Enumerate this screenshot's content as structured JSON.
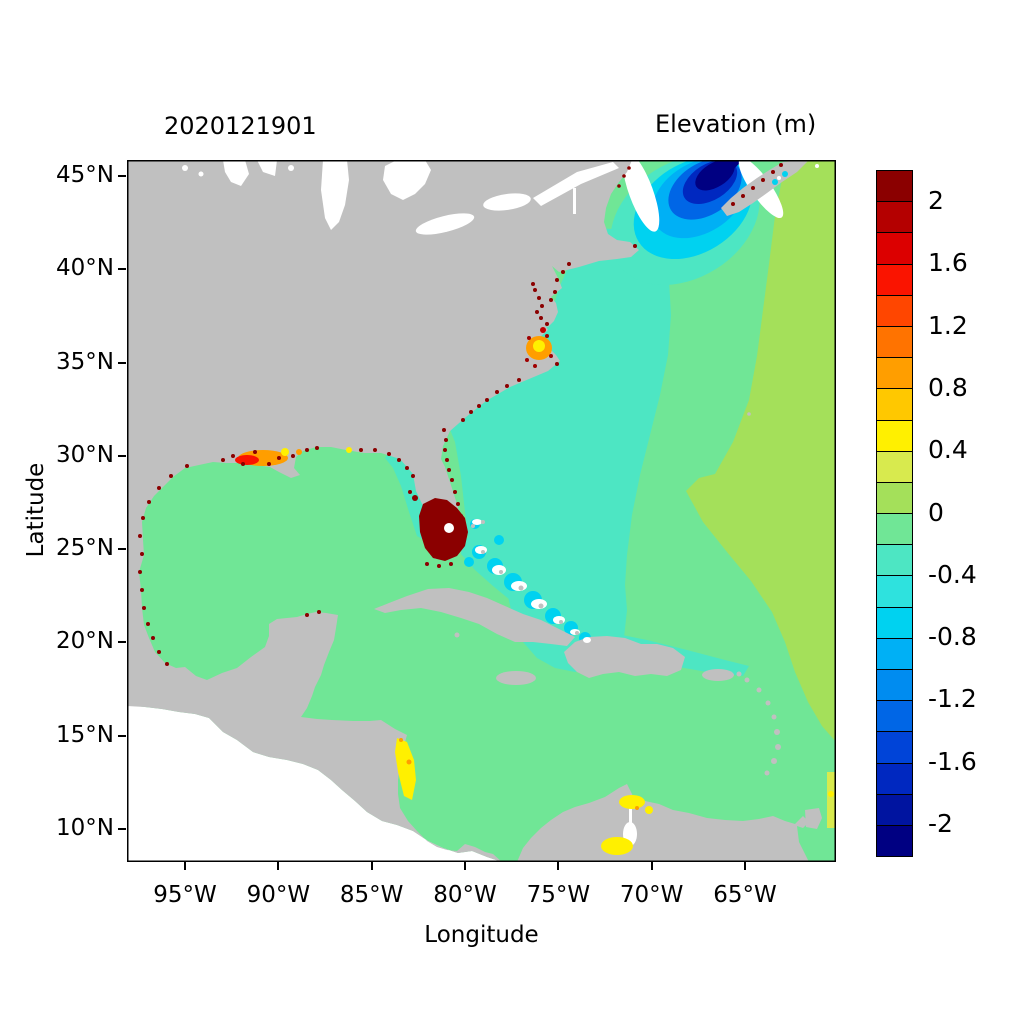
{
  "header": {
    "run_id": "2020121901",
    "colorbar_title": "Elevation (m)"
  },
  "axes": {
    "x_label": "Longitude",
    "y_label": "Latitude",
    "x_ticks": [
      "95°W",
      "90°W",
      "85°W",
      "80°W",
      "75°W",
      "70°W",
      "65°W"
    ],
    "y_ticks": [
      "45°N",
      "40°N",
      "35°N",
      "30°N",
      "25°N",
      "20°N",
      "15°N",
      "10°N"
    ]
  },
  "colorbar": {
    "labels": [
      "2",
      "1.6",
      "1.2",
      "0.8",
      "0.4",
      "0",
      "-0.4",
      "-0.8",
      "-1.2",
      "-1.6",
      "-2"
    ],
    "value_max": 2.2,
    "value_min": -2.2,
    "bin_size": 0.2,
    "bin_colors_top_to_bottom": [
      "#8b0000",
      "#b40000",
      "#dc0000",
      "#fa1400",
      "#ff4600",
      "#ff7300",
      "#ff9e00",
      "#ffc800",
      "#fff000",
      "#d8ea4e",
      "#a4e05a",
      "#70e696",
      "#4de6c3",
      "#2ee2de",
      "#00d2f0",
      "#00b0f5",
      "#008cf0",
      "#0066e6",
      "#0044d8",
      "#0028c0",
      "#0014a0",
      "#000082"
    ]
  },
  "map": {
    "land_color": "#c0c0c0",
    "background_color": "#ffffff",
    "ocean_base_color": "#70e696"
  },
  "chart_data": {
    "type": "heatmap",
    "title": "Elevation (m)",
    "timestamp": "2020121901",
    "xlabel": "Longitude",
    "ylabel": "Latitude",
    "x_range_deg": [
      -98.1,
      -60.1
    ],
    "y_range_deg": [
      8.2,
      45.9
    ],
    "x_tick_values_deg_west": [
      95,
      90,
      85,
      80,
      75,
      70,
      65
    ],
    "y_tick_values_deg_north": [
      45,
      40,
      35,
      30,
      25,
      20,
      15,
      10
    ],
    "colorbar": {
      "label": "Elevation (m)",
      "range": [
        -2.2,
        2.2
      ],
      "bin_size": 0.2,
      "tick_values": [
        2,
        1.6,
        1.2,
        0.8,
        0.4,
        0,
        -0.4,
        -0.8,
        -1.2,
        -1.6,
        -2
      ]
    },
    "features": [
      {
        "region": "Gulf of Maine / Bay of Fundy",
        "approx_lon": -68,
        "approx_lat": 44,
        "elevation_m": -2.2
      },
      {
        "region": "US East Coast shelf band",
        "approx_lon": -78,
        "approx_lat": 32,
        "elevation_m": -0.3
      },
      {
        "region": "Open Atlantic (eastern domain)",
        "approx_lon": -65,
        "approx_lat": 30,
        "elevation_m": 0.1
      },
      {
        "region": "Gulf of Mexico",
        "approx_lon": -92,
        "approx_lat": 25,
        "elevation_m": -0.1
      },
      {
        "region": "Caribbean Sea",
        "approx_lon": -75,
        "approx_lat": 15,
        "elevation_m": -0.1
      },
      {
        "region": "South Florida / Everglades",
        "approx_lon": -81,
        "approx_lat": 26,
        "elevation_m": 2.2
      },
      {
        "region": "Pamlico Sound (NC)",
        "approx_lon": -76,
        "approx_lat": 35.5,
        "elevation_m": 0.8
      },
      {
        "region": "Louisiana coastal marshes",
        "approx_lon": -91,
        "approx_lat": 29.5,
        "elevation_m": 1.0
      },
      {
        "region": "Bahamas banks",
        "approx_lon": -77,
        "approx_lat": 23,
        "elevation_m": -0.6
      },
      {
        "region": "Nicaragua coast",
        "approx_lon": -83.4,
        "approx_lat": 13,
        "elevation_m": 0.5
      },
      {
        "region": "Gulf of Venezuela coast",
        "approx_lon": -71,
        "approx_lat": 11.5,
        "elevation_m": 0.4
      },
      {
        "region": "Coastal high-elevation speckles (levees/marsh)",
        "approx_lon": null,
        "approx_lat": null,
        "elevation_m": 2.0
      }
    ]
  }
}
